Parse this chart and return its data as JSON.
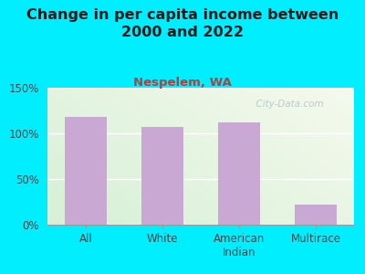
{
  "title": "Change in per capita income between\n2000 and 2022",
  "subtitle": "Nespelem, WA",
  "categories": [
    "All",
    "White",
    "American\nIndian",
    "Multirace"
  ],
  "values": [
    118,
    107,
    112,
    22
  ],
  "bar_color": "#c9a8d4",
  "ylim": [
    0,
    150
  ],
  "yticks": [
    0,
    50,
    100,
    150
  ],
  "ytick_labels": [
    "0%",
    "50%",
    "100%",
    "150%"
  ],
  "background_outer": "#00eeff",
  "background_inner_color1": "#f0f4e8",
  "background_inner_color2": "#daeeda",
  "title_fontsize": 11.5,
  "subtitle_fontsize": 9.5,
  "subtitle_color": "#b04040",
  "watermark": "  City-Data.com",
  "title_color": "#1a1a1a",
  "tick_label_fontsize": 8.5,
  "bar_width": 0.55
}
